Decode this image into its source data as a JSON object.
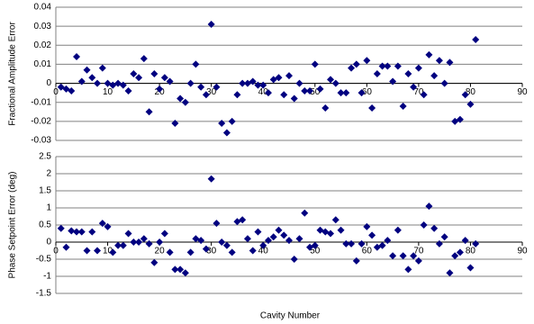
{
  "chart_data": [
    {
      "type": "scatter",
      "ylabel": "Fractional Amplitude Error",
      "color": "#000080",
      "x": [
        1,
        2,
        3,
        4,
        5,
        6,
        7,
        8,
        9,
        10,
        11,
        12,
        13,
        14,
        15,
        16,
        17,
        18,
        19,
        20,
        21,
        22,
        23,
        24,
        25,
        26,
        27,
        28,
        29,
        30,
        31,
        32,
        33,
        34,
        35,
        36,
        37,
        38,
        39,
        40,
        41,
        42,
        43,
        44,
        45,
        46,
        47,
        48,
        49,
        50,
        51,
        52,
        53,
        54,
        55,
        56,
        57,
        58,
        59,
        60,
        61,
        62,
        63,
        64,
        65,
        66,
        67,
        68,
        69,
        70,
        71,
        72,
        73,
        74,
        75,
        76,
        77,
        78,
        79,
        80,
        81
      ],
      "values": [
        -0.002,
        -0.003,
        -0.004,
        0.014,
        0.001,
        0.007,
        0.003,
        0.0,
        0.008,
        0.0,
        -0.001,
        0.0,
        -0.001,
        -0.004,
        0.005,
        0.003,
        0.013,
        -0.015,
        0.005,
        -0.003,
        0.003,
        0.001,
        -0.021,
        -0.008,
        -0.01,
        0.0,
        0.01,
        -0.002,
        -0.006,
        0.031,
        -0.002,
        -0.021,
        -0.026,
        -0.02,
        -0.006,
        0.0,
        0.0,
        0.001,
        -0.001,
        -0.001,
        -0.005,
        0.002,
        0.003,
        -0.006,
        0.004,
        -0.008,
        0.0,
        -0.004,
        -0.004,
        0.01,
        -0.003,
        -0.013,
        0.002,
        0.0,
        -0.005,
        -0.005,
        0.008,
        0.01,
        -0.005,
        0.012,
        -0.013,
        0.005,
        0.009,
        0.009,
        0.001,
        0.009,
        -0.012,
        0.005,
        -0.002,
        0.008,
        -0.006,
        0.015,
        0.004,
        0.012,
        0.0,
        0.011,
        -0.02,
        -0.019,
        -0.006,
        -0.011,
        0.023
      ],
      "xlim": [
        0,
        90
      ],
      "xticks": [
        0,
        10,
        20,
        30,
        40,
        50,
        60,
        70,
        80,
        90
      ],
      "ylim": [
        -0.03,
        0.04
      ],
      "yticks": [
        -0.03,
        -0.02,
        -0.01,
        0,
        0.01,
        0.02,
        0.03,
        0.04
      ],
      "grid": true
    },
    {
      "type": "scatter",
      "ylabel": "Phase Setpoint Error (deg)",
      "xlabel": "Cavity Number",
      "color": "#000080",
      "x": [
        1,
        2,
        3,
        4,
        5,
        6,
        7,
        8,
        9,
        10,
        11,
        12,
        13,
        14,
        15,
        16,
        17,
        18,
        19,
        20,
        21,
        22,
        23,
        24,
        25,
        26,
        27,
        28,
        29,
        30,
        31,
        32,
        33,
        34,
        35,
        36,
        37,
        38,
        39,
        40,
        41,
        42,
        43,
        44,
        45,
        46,
        47,
        48,
        49,
        50,
        51,
        52,
        53,
        54,
        55,
        56,
        57,
        58,
        59,
        60,
        61,
        62,
        63,
        64,
        65,
        66,
        67,
        68,
        69,
        70,
        71,
        72,
        73,
        74,
        75,
        76,
        77,
        78,
        79,
        80,
        81
      ],
      "values": [
        0.4,
        -0.15,
        0.33,
        0.3,
        0.3,
        -0.25,
        0.3,
        -0.25,
        0.55,
        0.45,
        -0.3,
        -0.1,
        -0.1,
        0.25,
        0.0,
        0.0,
        0.1,
        -0.05,
        -0.6,
        0.0,
        0.25,
        -0.3,
        -0.8,
        -0.8,
        -0.9,
        -0.3,
        0.1,
        0.05,
        -0.2,
        1.85,
        0.55,
        0.0,
        -0.1,
        -0.3,
        0.6,
        0.65,
        0.1,
        -0.25,
        0.3,
        -0.1,
        0.05,
        0.15,
        0.35,
        0.2,
        0.05,
        -0.5,
        0.1,
        0.85,
        -0.15,
        -0.1,
        0.35,
        0.3,
        0.25,
        0.65,
        0.35,
        -0.05,
        -0.05,
        -0.55,
        -0.05,
        0.45,
        0.2,
        -0.15,
        -0.1,
        0.05,
        -0.4,
        0.35,
        -0.4,
        -0.8,
        -0.4,
        -0.55,
        0.5,
        1.05,
        0.4,
        -0.05,
        0.15,
        -0.9,
        -0.4,
        -0.3,
        0.05,
        -0.75,
        -0.05
      ],
      "xlim": [
        0,
        90
      ],
      "xticks": [
        0,
        10,
        20,
        30,
        40,
        50,
        60,
        70,
        80,
        90
      ],
      "ylim": [
        -1.5,
        2.5
      ],
      "yticks": [
        -1.5,
        -1,
        -0.5,
        0,
        0.5,
        1,
        1.5,
        2,
        2.5
      ],
      "grid": true
    }
  ]
}
